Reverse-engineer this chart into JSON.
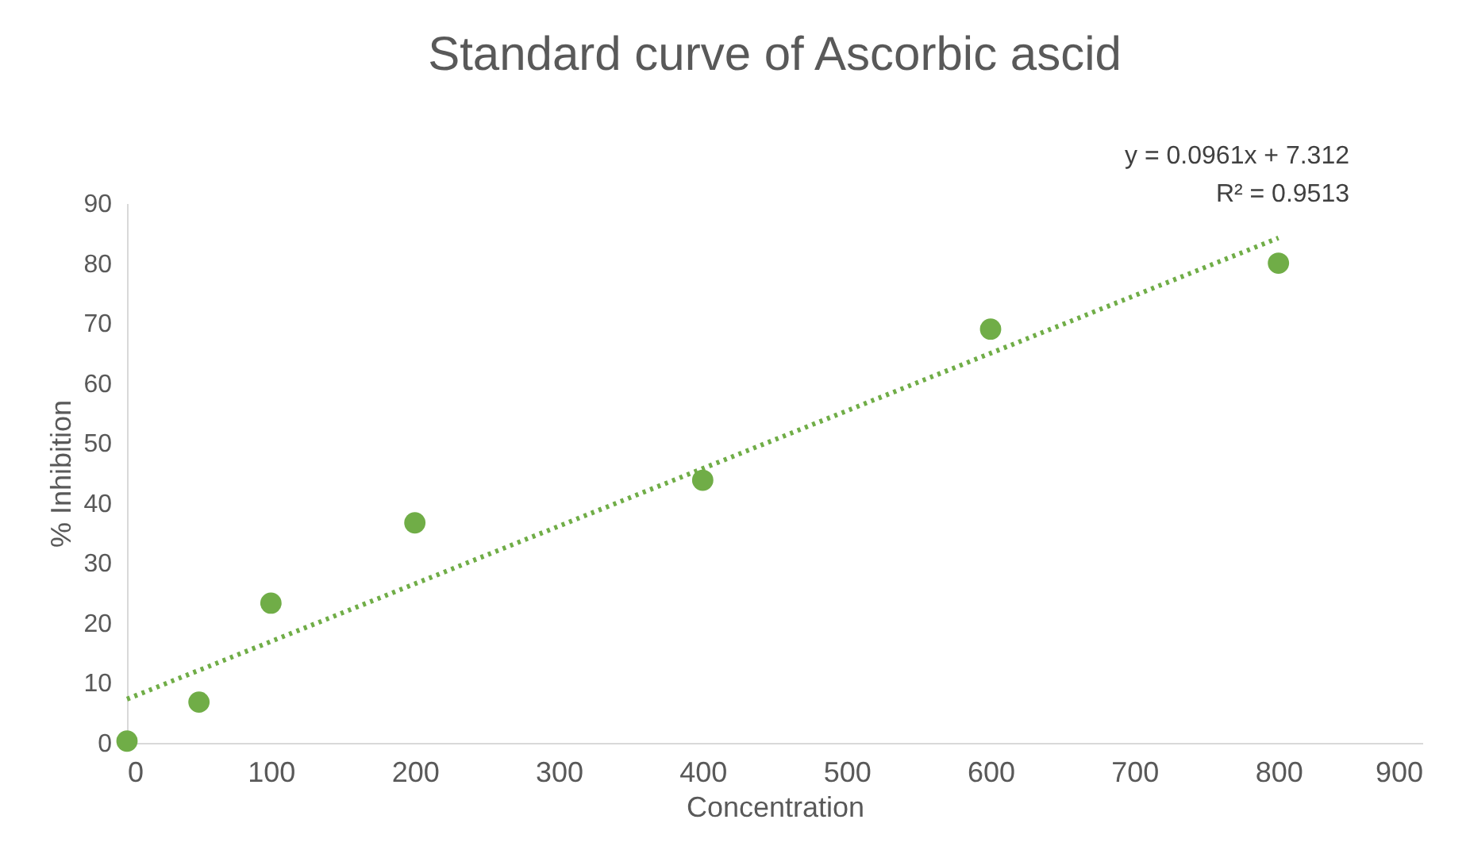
{
  "chart_data": {
    "type": "scatter",
    "title": "Standard curve of Ascorbic ascid",
    "xlabel": "Concentration",
    "ylabel": "% Inhibition",
    "x": [
      0,
      50,
      100,
      200,
      400,
      600,
      800
    ],
    "series": [
      {
        "color": "#70ad47",
        "marker": "circle",
        "values": [
          0.3,
          6.8,
          23.3,
          36.7,
          43.8,
          69.0,
          80.0
        ]
      },
      {
        "type": "line",
        "color": "#70ad47",
        "line_style": "dotted",
        "x": [
          0,
          800
        ],
        "values": [
          7.3,
          84.2
        ]
      }
    ],
    "annotations": [
      "y = 0.0961x + 7.312",
      "R² = 0.9513"
    ],
    "xlim": [
      0,
      900
    ],
    "xticks": [
      0,
      100,
      200,
      300,
      400,
      500,
      600,
      700,
      800,
      900
    ],
    "ylim": [
      0,
      90
    ],
    "yticks": [
      0,
      10,
      20,
      30,
      40,
      50,
      60,
      70,
      80,
      90
    ],
    "grid": false
  }
}
